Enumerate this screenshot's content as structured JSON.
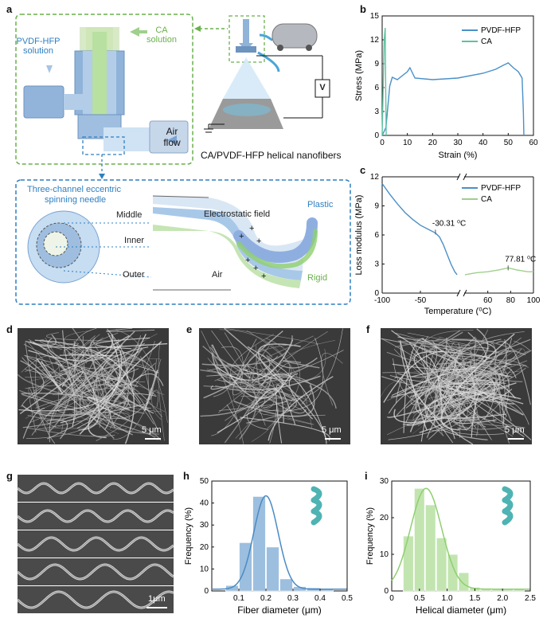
{
  "panels": {
    "a": "a",
    "b": "b",
    "c": "c",
    "d": "d",
    "e": "e",
    "f": "f",
    "g": "g",
    "h": "h",
    "i": "i"
  },
  "schematic": {
    "pvdf_solution": [
      "PVDF-HFP",
      "solution"
    ],
    "ca_solution": [
      "CA",
      "solution"
    ],
    "air_flow": [
      "Air",
      "flow"
    ],
    "voltage": "V",
    "product_caption": "CA/PVDF-HFP helical nanofibers",
    "needle_title": [
      "Three-channel eccentric",
      "spinning needle"
    ],
    "layers": [
      "Middle",
      "Inner",
      "Outer"
    ],
    "field": "Electrostatic field",
    "air": "Air",
    "plastic": "Plastic",
    "rigid": "Rigid",
    "colors": {
      "blue": "#2f7fc1",
      "green": "#6ab04c",
      "blue_fill": "#cfe3f4",
      "green_fill": "#bfe3b4"
    }
  },
  "sem": {
    "d_scale": "5 μm",
    "e_scale": "5 μm",
    "f_scale": "5 μm",
    "g_scale": "1μm"
  },
  "chart_data": [
    {
      "id": "b",
      "type": "line",
      "xlabel": "Strain (%)",
      "ylabel": "Stress (MPa)",
      "xlim": [
        0,
        60
      ],
      "ylim": [
        0,
        15
      ],
      "xticks": [
        0,
        10,
        20,
        30,
        40,
        50,
        60
      ],
      "yticks": [
        0,
        3,
        6,
        9,
        12,
        15
      ],
      "legend_position": "top-right",
      "series": [
        {
          "name": "PVDF-HFP",
          "color": "#4a90c8",
          "x": [
            0,
            1.5,
            3,
            4,
            6,
            10,
            11,
            13,
            20,
            30,
            40,
            45,
            48,
            50,
            52,
            54,
            55.5,
            56,
            56.2
          ],
          "y": [
            0,
            1,
            6.2,
            7.3,
            7.0,
            8.0,
            8.5,
            7.2,
            7.0,
            7.2,
            7.8,
            8.3,
            8.8,
            9.1,
            8.5,
            8.0,
            7.2,
            3,
            0
          ]
        },
        {
          "name": "CA",
          "color": "#5cc3a0",
          "x": [
            0,
            0.4,
            0.8,
            1.2,
            1.4,
            1.6
          ],
          "y": [
            0,
            6,
            12,
            13.5,
            6,
            0
          ]
        }
      ]
    },
    {
      "id": "c",
      "type": "line",
      "xlabel": "Temperature (⁰C)",
      "ylabel": "Loss modulus (MPa)",
      "ylim": [
        0,
        12
      ],
      "yticks": [
        0,
        3,
        6,
        9,
        12
      ],
      "x_segments": [
        [
          -100,
          0
        ],
        [
          40,
          100
        ]
      ],
      "xticks_left": [
        -100,
        -50
      ],
      "xticks_right": [
        60,
        80,
        100
      ],
      "legend_position": "top-right",
      "annotations": [
        {
          "text": "-30.31 ⁰C",
          "x": -30.31,
          "y": 6.3
        },
        {
          "text": "77.81 ⁰C",
          "x": 77.81,
          "y": 2.6
        }
      ],
      "series": [
        {
          "name": "PVDF-HFP",
          "color": "#4a90c8",
          "x": [
            -100,
            -90,
            -80,
            -70,
            -60,
            -50,
            -40,
            -30.31,
            -25,
            -20,
            -15,
            -10,
            -5,
            -2
          ],
          "y": [
            11.3,
            10.2,
            9.2,
            8.3,
            7.6,
            7.0,
            6.6,
            6.2,
            5.8,
            5.0,
            4.0,
            3.0,
            2.2,
            1.9
          ]
        },
        {
          "name": "CA",
          "color": "#9fd08c",
          "x": [
            40,
            50,
            60,
            70,
            77.81,
            85,
            95,
            100
          ],
          "y": [
            1.9,
            2.1,
            2.2,
            2.4,
            2.6,
            2.4,
            2.2,
            2.2
          ]
        }
      ]
    },
    {
      "id": "h",
      "type": "bar",
      "xlabel": "Fiber diameter (μm)",
      "ylabel": "Frequency (%)",
      "xlim": [
        0,
        0.5
      ],
      "ylim": [
        0,
        50
      ],
      "xticks": [
        0.1,
        0.2,
        0.3,
        0.4,
        0.5
      ],
      "yticks": [
        0,
        10,
        20,
        30,
        40,
        50
      ],
      "color": "#4a8bc4",
      "bin_width": 0.05,
      "bins": [
        0.075,
        0.125,
        0.175,
        0.225,
        0.275,
        0.325,
        0.375,
        0.425
      ],
      "values": [
        2.5,
        22,
        43,
        20,
        5.5,
        2,
        1.5,
        1
      ],
      "fit_mean": 0.2,
      "fit_sigma": 0.045,
      "fit_peak": 42.5
    },
    {
      "id": "i",
      "type": "bar",
      "xlabel": "Helical diameter (μm)",
      "ylabel": "Frequency (%)",
      "xlim": [
        0,
        2.5
      ],
      "ylim": [
        0,
        30
      ],
      "xticks": [
        0,
        0.5,
        1.0,
        1.5,
        2.0,
        2.5
      ],
      "yticks": [
        0,
        10,
        20,
        30
      ],
      "color": "#8fcf6f",
      "bin_width": 0.2,
      "bins": [
        0.3,
        0.5,
        0.7,
        0.9,
        1.1,
        1.3,
        1.5,
        1.7,
        1.9,
        2.1,
        2.3
      ],
      "values": [
        15,
        28,
        23.5,
        14.5,
        10,
        5,
        1,
        0.5,
        0.5,
        0.5,
        0.5
      ],
      "fit_mean": 0.62,
      "fit_sigma": 0.28,
      "fit_peak": 27.5
    }
  ]
}
